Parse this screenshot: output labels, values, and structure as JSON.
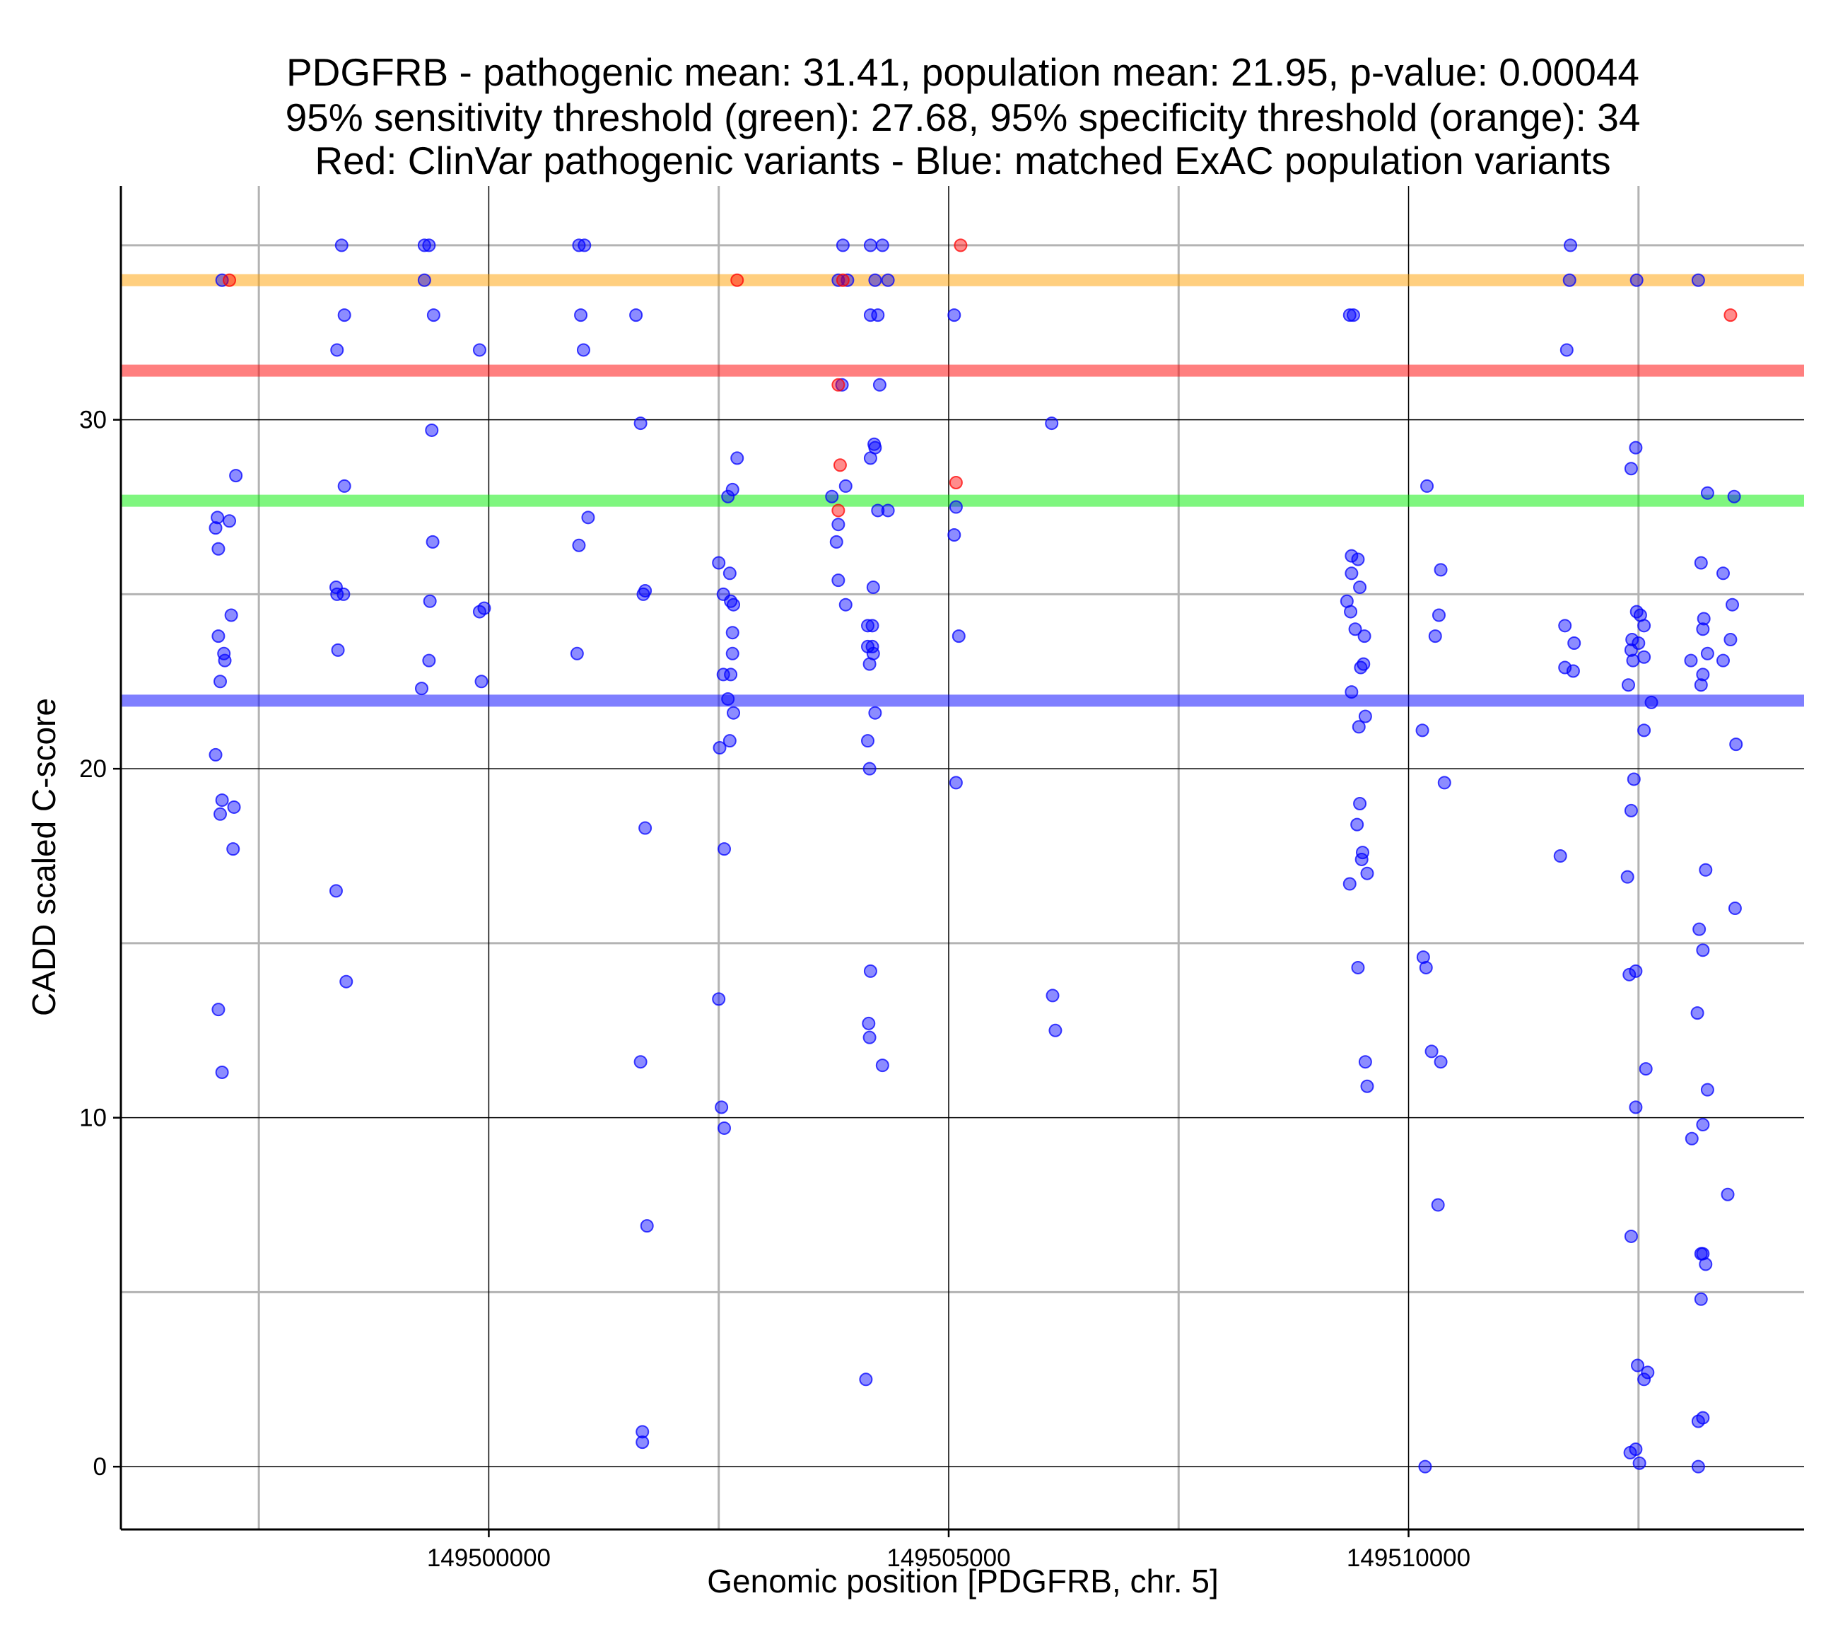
{
  "chart_data": {
    "type": "scatter",
    "title_lines": [
      "PDGFRB - pathogenic mean: 31.41, population mean: 21.95, p-value: 0.00044",
      "95% sensitivity threshold (green): 27.68, 95% specificity threshold (orange): 34",
      "Red: ClinVar pathogenic variants - Blue: matched ExAC population variants"
    ],
    "xlabel": "Genomic position [PDGFRB, chr. 5]",
    "ylabel": "CADD scaled C-score",
    "xlim": [
      149496000,
      149514300
    ],
    "ylim": [
      -1.8,
      36.7
    ],
    "x_ticks": [
      149500000,
      149505000,
      149510000
    ],
    "x_tick_labels": [
      "149500000",
      "149505000",
      "149510000"
    ],
    "x_minor_ticks": [
      149497500,
      149502500,
      149507500,
      149512500
    ],
    "y_ticks": [
      0,
      10,
      20,
      30
    ],
    "y_tick_labels": [
      "0",
      "10",
      "20",
      "30"
    ],
    "y_minor_ticks": [
      5,
      15,
      25,
      35
    ],
    "grid": true,
    "colors": {
      "population": "#0000ff",
      "pathogenic": "#ff0000",
      "sensitivity_threshold": "#00ee00",
      "specificity_threshold": "#ffa000",
      "pathogenic_mean": "#ff0000",
      "population_mean": "#0000ff"
    },
    "reference_lines": [
      {
        "name": "specificity threshold",
        "y": 34,
        "color": "#ffa000"
      },
      {
        "name": "pathogenic mean",
        "y": 31.41,
        "color": "#ff0000"
      },
      {
        "name": "sensitivity threshold",
        "y": 27.68,
        "color": "#00ee00"
      },
      {
        "name": "population mean",
        "y": 21.95,
        "color": "#0000ff"
      }
    ],
    "pathogenic_points": [
      [
        149497180,
        34
      ],
      [
        149502700,
        34
      ],
      [
        149503850,
        34
      ],
      [
        149503800,
        31
      ],
      [
        149505130,
        35
      ],
      [
        149513500,
        33
      ],
      [
        149503820,
        28.7
      ],
      [
        149505080,
        28.2
      ],
      [
        149503800,
        27.4
      ]
    ],
    "population_points": [
      [
        149497100,
        34
      ],
      [
        149497250,
        28.4
      ],
      [
        149497050,
        27.2
      ],
      [
        149497180,
        27.1
      ],
      [
        149497030,
        26.9
      ],
      [
        149497060,
        26.3
      ],
      [
        149497200,
        24.4
      ],
      [
        149497060,
        23.8
      ],
      [
        149497120,
        23.3
      ],
      [
        149497130,
        23.1
      ],
      [
        149497080,
        22.5
      ],
      [
        149497030,
        20.4
      ],
      [
        149497100,
        19.1
      ],
      [
        149497230,
        18.9
      ],
      [
        149497080,
        18.7
      ],
      [
        149497220,
        17.7
      ],
      [
        149497060,
        13.1
      ],
      [
        149497100,
        11.3
      ],
      [
        149498400,
        35
      ],
      [
        149498430,
        33
      ],
      [
        149498350,
        32
      ],
      [
        149498430,
        28.1
      ],
      [
        149498340,
        25.2
      ],
      [
        149498350,
        25
      ],
      [
        149498420,
        25
      ],
      [
        149498360,
        23.4
      ],
      [
        149498340,
        16.5
      ],
      [
        149498450,
        13.9
      ],
      [
        149499300,
        35
      ],
      [
        149499350,
        35
      ],
      [
        149499300,
        34
      ],
      [
        149499400,
        33
      ],
      [
        149499380,
        29.7
      ],
      [
        149499390,
        26.5
      ],
      [
        149499360,
        24.8
      ],
      [
        149499350,
        23.1
      ],
      [
        149499270,
        22.3
      ],
      [
        149499900,
        32
      ],
      [
        149499950,
        24.6
      ],
      [
        149499900,
        24.5
      ],
      [
        149499920,
        22.5
      ],
      [
        149500980,
        35
      ],
      [
        149501040,
        35
      ],
      [
        149501000,
        33
      ],
      [
        149501030,
        32
      ],
      [
        149500980,
        26.4
      ],
      [
        149501080,
        27.2
      ],
      [
        149500960,
        23.3
      ],
      [
        149501600,
        33
      ],
      [
        149501650,
        29.9
      ],
      [
        149501700,
        25.1
      ],
      [
        149501680,
        25
      ],
      [
        149501700,
        18.3
      ],
      [
        149501650,
        11.6
      ],
      [
        149501720,
        6.9
      ],
      [
        149501670,
        1
      ],
      [
        149501670,
        0.7
      ],
      [
        149502700,
        28.9
      ],
      [
        149502650,
        28
      ],
      [
        149502600,
        27.8
      ],
      [
        149502500,
        25.9
      ],
      [
        149502620,
        25.6
      ],
      [
        149502550,
        25
      ],
      [
        149502630,
        24.8
      ],
      [
        149502660,
        24.7
      ],
      [
        149502650,
        23.9
      ],
      [
        149502650,
        23.3
      ],
      [
        149502550,
        22.7
      ],
      [
        149502630,
        22.7
      ],
      [
        149502600,
        22
      ],
      [
        149502660,
        21.6
      ],
      [
        149502620,
        20.8
      ],
      [
        149502510,
        20.6
      ],
      [
        149502560,
        17.7
      ],
      [
        149502500,
        13.4
      ],
      [
        149502530,
        10.3
      ],
      [
        149502560,
        9.7
      ],
      [
        149504150,
        35
      ],
      [
        149504200,
        34
      ],
      [
        149504150,
        33
      ],
      [
        149504250,
        31
      ],
      [
        149504200,
        29.2
      ],
      [
        149504150,
        28.9
      ],
      [
        149504230,
        27.4
      ],
      [
        149504180,
        25.2
      ],
      [
        149504120,
        24.1
      ],
      [
        149504170,
        24.1
      ],
      [
        149504120,
        23.5
      ],
      [
        149504170,
        23.5
      ],
      [
        149504140,
        23
      ],
      [
        149504200,
        21.6
      ],
      [
        149504120,
        20.8
      ],
      [
        149504140,
        20
      ],
      [
        149504150,
        14.2
      ],
      [
        149504130,
        12.7
      ],
      [
        149504140,
        12.3
      ],
      [
        149504100,
        2.5
      ],
      [
        149503850,
        35
      ],
      [
        149503800,
        34
      ],
      [
        149503900,
        34
      ],
      [
        149503840,
        31
      ],
      [
        149503880,
        28.1
      ],
      [
        149503730,
        27.8
      ],
      [
        149503800,
        27
      ],
      [
        149503780,
        26.5
      ],
      [
        149503800,
        25.4
      ],
      [
        149503880,
        24.7
      ],
      [
        149504280,
        35
      ],
      [
        149504340,
        34
      ],
      [
        149504230,
        33
      ],
      [
        149504190,
        29.3
      ],
      [
        149504340,
        27.4
      ],
      [
        149504180,
        23.3
      ],
      [
        149504280,
        11.5
      ],
      [
        149505060,
        33
      ],
      [
        149505080,
        27.5
      ],
      [
        149505060,
        26.7
      ],
      [
        149505110,
        23.8
      ],
      [
        149505080,
        19.6
      ],
      [
        149506120,
        29.9
      ],
      [
        149506130,
        13.5
      ],
      [
        149506160,
        12.5
      ],
      [
        149509360,
        33
      ],
      [
        149509400,
        33
      ],
      [
        149509380,
        26.1
      ],
      [
        149509450,
        26
      ],
      [
        149509380,
        25.6
      ],
      [
        149509470,
        25.2
      ],
      [
        149509330,
        24.8
      ],
      [
        149509370,
        24.5
      ],
      [
        149509420,
        24
      ],
      [
        149509520,
        23.8
      ],
      [
        149509480,
        22.9
      ],
      [
        149509510,
        23
      ],
      [
        149509380,
        22.2
      ],
      [
        149509530,
        21.5
      ],
      [
        149509460,
        21.2
      ],
      [
        149509470,
        19
      ],
      [
        149509440,
        18.4
      ],
      [
        149509500,
        17.6
      ],
      [
        149509490,
        17.4
      ],
      [
        149509550,
        17
      ],
      [
        149509360,
        16.7
      ],
      [
        149509450,
        14.3
      ],
      [
        149509530,
        11.6
      ],
      [
        149509550,
        10.9
      ],
      [
        149510200,
        28.1
      ],
      [
        149510350,
        25.7
      ],
      [
        149510330,
        24.4
      ],
      [
        149510290,
        23.8
      ],
      [
        149510150,
        21.1
      ],
      [
        149510390,
        19.6
      ],
      [
        149510160,
        14.6
      ],
      [
        149510190,
        14.3
      ],
      [
        149510250,
        11.9
      ],
      [
        149510350,
        11.6
      ],
      [
        149510320,
        7.5
      ],
      [
        149510180,
        0
      ],
      [
        149511760,
        35
      ],
      [
        149511750,
        34
      ],
      [
        149511720,
        32
      ],
      [
        149511700,
        24.1
      ],
      [
        149511800,
        23.6
      ],
      [
        149511700,
        22.9
      ],
      [
        149511790,
        22.8
      ],
      [
        149511650,
        17.5
      ],
      [
        149512480,
        34
      ],
      [
        149512470,
        29.2
      ],
      [
        149512420,
        28.6
      ],
      [
        149512480,
        24.5
      ],
      [
        149512520,
        24.4
      ],
      [
        149512430,
        23.7
      ],
      [
        149512500,
        23.6
      ],
      [
        149512560,
        24.1
      ],
      [
        149512420,
        23.4
      ],
      [
        149512440,
        23.1
      ],
      [
        149512560,
        23.2
      ],
      [
        149512390,
        22.4
      ],
      [
        149512640,
        21.9
      ],
      [
        149512560,
        21.1
      ],
      [
        149512450,
        19.7
      ],
      [
        149512420,
        18.8
      ],
      [
        149512380,
        16.9
      ],
      [
        149512470,
        14.2
      ],
      [
        149512400,
        14.1
      ],
      [
        149512580,
        11.4
      ],
      [
        149512470,
        10.3
      ],
      [
        149512420,
        6.6
      ],
      [
        149512490,
        2.9
      ],
      [
        149512600,
        2.7
      ],
      [
        149512560,
        2.5
      ],
      [
        149512470,
        0.5
      ],
      [
        149512410,
        0.4
      ],
      [
        149512510,
        0.1
      ],
      [
        149513150,
        34
      ],
      [
        149513250,
        27.9
      ],
      [
        149513540,
        27.8
      ],
      [
        149513180,
        25.9
      ],
      [
        149513420,
        25.6
      ],
      [
        149513520,
        24.7
      ],
      [
        149513210,
        24.3
      ],
      [
        149513200,
        24
      ],
      [
        149513500,
        23.7
      ],
      [
        149513250,
        23.3
      ],
      [
        149513070,
        23.1
      ],
      [
        149513420,
        23.1
      ],
      [
        149513200,
        22.7
      ],
      [
        149513180,
        22.4
      ],
      [
        149513560,
        20.7
      ],
      [
        149513230,
        17.1
      ],
      [
        149513550,
        16
      ],
      [
        149513160,
        15.4
      ],
      [
        149513200,
        14.8
      ],
      [
        149513140,
        13
      ],
      [
        149513250,
        10.8
      ],
      [
        149513200,
        9.8
      ],
      [
        149513080,
        9.4
      ],
      [
        149513470,
        7.8
      ],
      [
        149513180,
        6.1
      ],
      [
        149513200,
        6.1
      ],
      [
        149513230,
        5.8
      ],
      [
        149513180,
        4.8
      ],
      [
        149513200,
        1.4
      ],
      [
        149513150,
        1.3
      ],
      [
        149513150,
        0
      ]
    ]
  }
}
